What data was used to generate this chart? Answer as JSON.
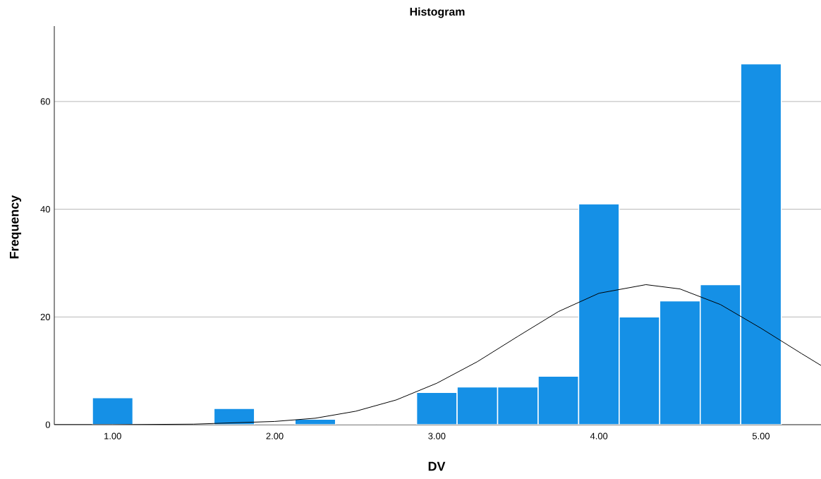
{
  "chart_data": {
    "type": "histogram",
    "title": "Histogram",
    "xlabel": "DV",
    "ylabel": "Frequency",
    "bins": [
      0.875,
      1.125,
      1.375,
      1.625,
      1.875,
      2.125,
      2.375,
      2.625,
      2.875,
      3.125,
      3.375,
      3.625,
      3.875,
      4.125,
      4.375,
      4.625,
      4.875,
      5.125
    ],
    "values": [
      5,
      0,
      0,
      3,
      0,
      1,
      0,
      0,
      6,
      7,
      7,
      9,
      41,
      20,
      23,
      26,
      67
    ],
    "color": "#1590e6",
    "series": [
      {
        "type": "line",
        "color": "#000000",
        "x": [
          0.64,
          1.0,
          1.5,
          2.0,
          2.25,
          2.5,
          2.75,
          3.0,
          3.25,
          3.5,
          3.75,
          4.0,
          4.29,
          4.5,
          4.75,
          5.0,
          5.25,
          5.37
        ],
        "values": [
          0,
          0,
          0.1,
          0.6,
          1.2,
          2.5,
          4.6,
          7.7,
          11.7,
          16.4,
          21.0,
          24.4,
          26,
          25.2,
          22.3,
          17.9,
          13.2,
          11.0
        ]
      }
    ],
    "xlim": [
      0.64,
      5.37
    ],
    "ylim": [
      0,
      74
    ],
    "xticks": [
      {
        "value": 1,
        "label": "1.00"
      },
      {
        "value": 2,
        "label": "2.00"
      },
      {
        "value": 3,
        "label": "3.00"
      },
      {
        "value": 4,
        "label": "4.00"
      },
      {
        "value": 5,
        "label": "5.00"
      }
    ],
    "yticks": [
      0,
      20,
      40,
      60
    ],
    "grid": "y"
  }
}
